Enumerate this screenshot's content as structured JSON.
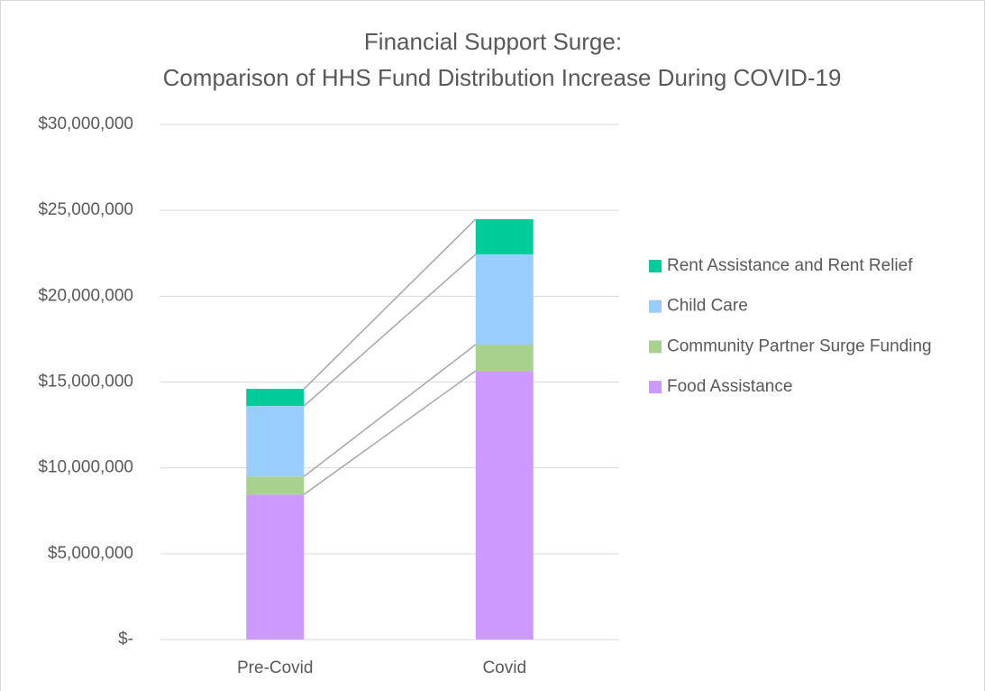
{
  "chart_data": {
    "type": "stacked_bar",
    "title": "Financial Support Surge:",
    "subtitle": "Comparison of HHS Fund Distribution Increase During COVID-19",
    "categories": [
      "Pre-Covid",
      "Covid"
    ],
    "series": [
      {
        "name": "Food Assistance",
        "color": "#cc99ff",
        "values": [
          8450000,
          15650000
        ]
      },
      {
        "name": "Community Partner Surge Funding",
        "color": "#a9d18e",
        "values": [
          1050000,
          1530000
        ]
      },
      {
        "name": "Child Care",
        "color": "#99ccff",
        "values": [
          4100000,
          5260000
        ]
      },
      {
        "name": "Rent Assistance and  Rent Relief",
        "color": "#00cc99",
        "values": [
          1000000,
          2050000
        ]
      }
    ],
    "ylim": [
      0,
      30000000
    ],
    "yticks": [
      {
        "value": 0,
        "label": "$-"
      },
      {
        "value": 5000000,
        "label": "$5,000,000"
      },
      {
        "value": 10000000,
        "label": "$10,000,000"
      },
      {
        "value": 15000000,
        "label": "$15,000,000"
      },
      {
        "value": 20000000,
        "label": "$20,000,000"
      },
      {
        "value": 25000000,
        "label": "$25,000,000"
      },
      {
        "value": 30000000,
        "label": "$30,000,000"
      }
    ],
    "grid": true,
    "series_lines": true,
    "legend": "right"
  }
}
